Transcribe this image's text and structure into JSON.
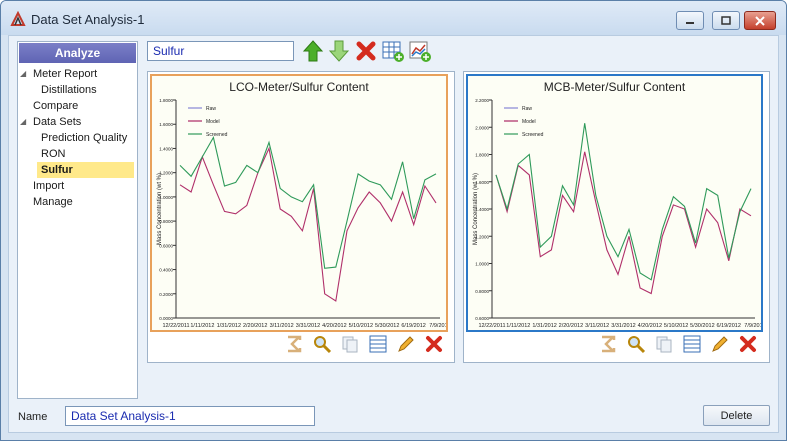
{
  "window": {
    "title": "Data Set Analysis-1"
  },
  "sidebar": {
    "header": "Analyze",
    "items": [
      {
        "label": "Meter Report",
        "level": 0,
        "expanded": true
      },
      {
        "label": "Distillations",
        "level": 1
      },
      {
        "label": "Compare",
        "level": 0
      },
      {
        "label": "Data Sets",
        "level": 0,
        "expanded": true
      },
      {
        "label": "Prediction Quality",
        "level": 1
      },
      {
        "label": "RON",
        "level": 1
      },
      {
        "label": "Sulfur",
        "level": 1,
        "selected": true
      },
      {
        "label": "Import",
        "level": 0
      },
      {
        "label": "Manage",
        "level": 0
      }
    ]
  },
  "toolbar": {
    "dataset_value": "Sulfur"
  },
  "colors": {
    "raw": "#8c8cd8",
    "model": "#b0306a",
    "screened": "#2f9a5a"
  },
  "footer": {
    "name_label": "Name",
    "name_value": "Data Set Analysis-1",
    "delete_label": "Delete"
  },
  "chart_data": [
    {
      "type": "line",
      "title": "LCO-Meter/Sulfur Content",
      "ylabel": "Mass Concentration (wt %)",
      "ylim": [
        0,
        1.8
      ],
      "yticks": [
        "0.0000",
        "0.2000",
        "0.4000",
        "0.6000",
        "0.8000",
        "1.0000",
        "1.2000",
        "1.4000",
        "1.6000",
        "1.8000"
      ],
      "xticks": [
        "12/22/2011",
        "1/11/2012",
        "1/31/2012",
        "2/20/2012",
        "3/11/2012",
        "3/31/2012",
        "4/20/2012",
        "5/10/2012",
        "5/30/2012",
        "6/19/2012",
        "7/9/2012"
      ],
      "legend": [
        "Raw",
        "Model",
        "Screened"
      ],
      "series": [
        {
          "name": "Raw",
          "values": []
        },
        {
          "name": "Model",
          "values": [
            1.1,
            1.04,
            1.33,
            1.1,
            0.88,
            0.86,
            0.93,
            1.2,
            1.4,
            0.9,
            0.84,
            0.72,
            1.07,
            0.2,
            0.14,
            0.72,
            0.91,
            1.04,
            0.95,
            0.8,
            1.04,
            0.77,
            1.09,
            0.95
          ]
        },
        {
          "name": "Screened",
          "values": [
            1.26,
            1.17,
            1.33,
            1.49,
            1.09,
            1.12,
            1.26,
            1.2,
            1.45,
            1.07,
            1.0,
            0.96,
            1.1,
            0.41,
            0.42,
            0.8,
            1.19,
            1.13,
            1.1,
            0.98,
            1.29,
            0.82,
            1.14,
            1.19
          ]
        }
      ]
    },
    {
      "type": "line",
      "title": "MCB-Meter/Sulfur Content",
      "ylabel": "Mass Concentration (wt %)",
      "ylim": [
        0.6,
        2.2
      ],
      "yticks": [
        "0.6000",
        "0.8000",
        "1.0000",
        "1.2000",
        "1.4000",
        "1.6000",
        "1.8000",
        "2.0000",
        "2.2000"
      ],
      "xticks": [
        "12/22/2011",
        "1/11/2012",
        "1/31/2012",
        "2/20/2012",
        "3/11/2012",
        "3/31/2012",
        "4/20/2012",
        "5/10/2012",
        "5/30/2012",
        "6/19/2012",
        "7/9/2012"
      ],
      "legend": [
        "Raw",
        "Model",
        "Screened"
      ],
      "series": [
        {
          "name": "Raw",
          "values": []
        },
        {
          "name": "Model",
          "values": [
            1.65,
            1.38,
            1.72,
            1.65,
            1.05,
            1.1,
            1.5,
            1.38,
            1.82,
            1.45,
            1.1,
            0.92,
            1.2,
            0.82,
            0.78,
            1.2,
            1.43,
            1.4,
            1.12,
            1.4,
            1.3,
            1.02,
            1.4,
            1.35
          ]
        },
        {
          "name": "Screened",
          "values": [
            1.65,
            1.4,
            1.73,
            1.8,
            1.12,
            1.2,
            1.57,
            1.43,
            2.03,
            1.5,
            1.2,
            1.05,
            1.25,
            0.93,
            0.88,
            1.25,
            1.49,
            1.42,
            1.15,
            1.55,
            1.5,
            1.04,
            1.38,
            1.55
          ]
        }
      ]
    }
  ]
}
